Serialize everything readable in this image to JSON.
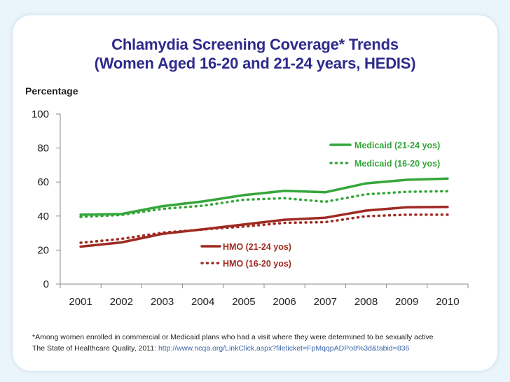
{
  "title": {
    "line1": "Chlamydia Screening Coverage* Trends",
    "line2": "(Women Aged 16-20 and 21-24 years, HEDIS)"
  },
  "colors": {
    "medicaid": "#35a63a",
    "hmo": "#9e2a22",
    "title": "#2e2a8c",
    "axis": "#888888"
  },
  "chart_data": {
    "type": "line",
    "ylabel": "Percentage",
    "xlabel": "",
    "x": [
      "2001",
      "2002",
      "2003",
      "2004",
      "2005",
      "2006",
      "2007",
      "2008",
      "2009",
      "2010"
    ],
    "ylim": [
      0,
      100
    ],
    "yticks": [
      0,
      20,
      40,
      60,
      80,
      100
    ],
    "grid": false,
    "series": [
      {
        "name": "Medicaid (21-24 yos)",
        "style": "solid",
        "color": "#35a63a",
        "values": [
          40.8,
          41.2,
          45.8,
          48.6,
          52.3,
          54.8,
          54.0,
          59.2,
          61.3,
          62.0
        ]
      },
      {
        "name": "Medicaid (16-20 yos)",
        "style": "dotted",
        "color": "#35a63a",
        "values": [
          39.5,
          40.6,
          44.2,
          46.1,
          49.6,
          50.5,
          48.4,
          52.8,
          54.3,
          54.6
        ]
      },
      {
        "name": "HMO (21-24 yos)",
        "style": "solid",
        "color": "#9e2a22",
        "values": [
          22.0,
          24.5,
          29.5,
          32.2,
          35.0,
          37.8,
          39.0,
          43.2,
          45.2,
          45.4
        ]
      },
      {
        "name": "HMO (16-20 yos)",
        "style": "dotted",
        "color": "#9e2a22",
        "values": [
          24.3,
          26.6,
          30.2,
          32.1,
          33.8,
          36.0,
          36.4,
          39.9,
          40.8,
          40.8
        ]
      }
    ]
  },
  "footnote": "*Among women enrolled in commercial or Medicaid plans who had a visit where they were determined to be sexually active",
  "source": {
    "prefix": "The State of Healthcare Quality, 2011:",
    "link": "http://www.ncqa.org/LinkClick.aspx?fileticket=FpMqqpADPo8%3d&tabid=836"
  }
}
